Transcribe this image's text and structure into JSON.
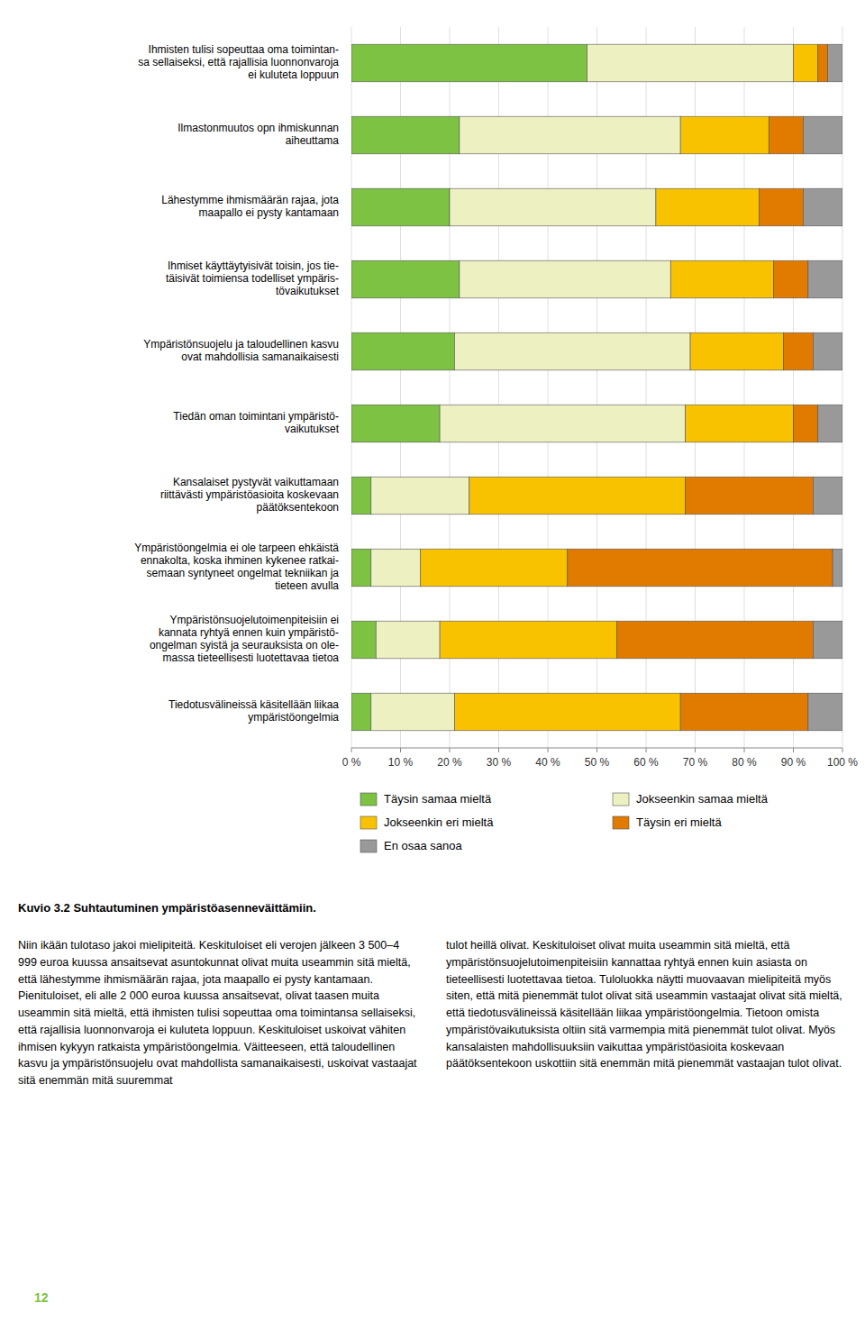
{
  "chart_data": {
    "type": "bar",
    "orientation": "horizontal",
    "stacked": true,
    "grid": true,
    "legend": "bottom",
    "categories": [
      "Ihmisten tulisi sopeuttaa oma toimintan-\nsa sellaiseksi, että rajallisia luonnonvaroja\nei kuluteta loppuun",
      "Ilmastonmuutos opn ihmiskunnan\naiheuttama",
      "Lähestymme ihmismäärän rajaa, jota\nmaapallo ei pysty kantamaan",
      "Ihmiset käyttäytyisivät toisin, jos tie-\ntäisivät toimiensa todelliset ympäris-\ntövaikutukset",
      "Ympäristönsuojelu ja taloudellinen kasvu\novat mahdollisia samanaikaisesti",
      "  Tiedän oman toimintani ympäristö-\n  vaikutukset",
      "  Kansalaiset pystyvät vaikuttamaan\n  riittävästi ympäristöasioita koskevaan\n  päätöksentekoon",
      "  Ympäristöongelmia ei ole tarpeen ehkäistä\n  ennakolta, koska ihminen kykenee ratkai-\n  semaan syntyneet ongelmat tekniikan ja\n  tieteen avulla",
      "  Ympäristönsuojelutoimenpiteisiin ei\n  kannata ryhtyä ennen kuin ympäristö-\n  ongelman syistä ja seurauksista on ole-\n  massa tieteellisesti luotettavaa tietoa",
      "  Tiedotusvälineissä käsitellään liikaa\n  ympäristöongelmia"
    ],
    "series": [
      {
        "name": "Täysin samaa mieltä",
        "color": "#7dc242",
        "values": [
          48,
          22,
          20,
          22,
          21,
          18,
          4,
          4,
          5,
          4
        ]
      },
      {
        "name": "Jokseenkin samaa mieltä",
        "color": "#edf1c2",
        "values": [
          42,
          45,
          42,
          43,
          48,
          50,
          20,
          10,
          13,
          17
        ]
      },
      {
        "name": "Jokseenkin eri mieltä",
        "color": "#f8c200",
        "values": [
          5,
          18,
          21,
          21,
          19,
          22,
          44,
          30,
          36,
          46
        ]
      },
      {
        "name": "Täysin eri mieltä",
        "color": "#e07b00",
        "values": [
          2,
          7,
          9,
          7,
          6,
          5,
          26,
          54,
          40,
          26
        ]
      },
      {
        "name": "En osaa sanoa",
        "color": "#999999",
        "values": [
          3,
          8,
          8,
          7,
          6,
          5,
          6,
          2,
          6,
          7
        ]
      }
    ],
    "xlim": [
      0,
      100
    ],
    "xticks": [
      {
        "value": 0,
        "label": "0 %"
      },
      {
        "value": 10,
        "label": "10 %"
      },
      {
        "value": 20,
        "label": "20 %"
      },
      {
        "value": 30,
        "label": "30 %"
      },
      {
        "value": 40,
        "label": "40 %"
      },
      {
        "value": 50,
        "label": "50 %"
      },
      {
        "value": 60,
        "label": "60 %"
      },
      {
        "value": 70,
        "label": "70 %"
      },
      {
        "value": 80,
        "label": "80 %"
      },
      {
        "value": 90,
        "label": "90 %"
      },
      {
        "value": 100,
        "label": "100 %"
      }
    ]
  },
  "caption": "Kuvio 3.2 Suhtautuminen ympäristöasenneväittämiin.",
  "body_left": "Niin ikään tulotaso jakoi mielipiteitä. Keskituloiset eli verojen jälkeen 3 500–4 999 euroa kuussa ansaitsevat asuntokunnat olivat muita useammin sitä mieltä, että lähestymme ihmismäärän rajaa, jota maapallo ei pysty kantamaan. Pienituloiset, eli alle 2 000 euroa kuussa ansaitsevat, olivat taasen muita useammin sitä mieltä, että ihmisten tulisi sopeuttaa oma toimintansa sellaiseksi, että rajallisia luonnonvaroja ei kuluteta loppuun. Keskituloiset uskoivat vähiten ihmisen kykyyn ratkaista ympäristöongelmia. Väitteeseen, että taloudellinen kasvu ja ympäristönsuojelu ovat mahdollista samanaikaisesti, uskoivat vastaajat sitä enemmän mitä suuremmat",
  "body_right": "tulot heillä olivat. Keskituloiset olivat muita useammin sitä mieltä, että ympäristönsuojelutoimenpiteisiin kannattaa ryhtyä ennen kuin asiasta on tieteellisesti luotettavaa tietoa. Tuloluokka näytti muovaavan mielipiteitä myös siten, että mitä pienemmät tulot olivat sitä useammin vastaajat olivat sitä mieltä, että tiedotusvälineissä käsitellään liikaa ympäristöongelmia. Tietoon omista ympäristövaikutuksista oltiin sitä varmempia mitä pienemmät tulot olivat. Myös kansalaisten mahdollisuuksiin vaikuttaa ympäristöasioita koskevaan päätöksentekoon uskottiin sitä enemmän mitä pienemmät vastaajan tulot olivat.",
  "page_number": "12",
  "page_number_color": "#7dc242"
}
